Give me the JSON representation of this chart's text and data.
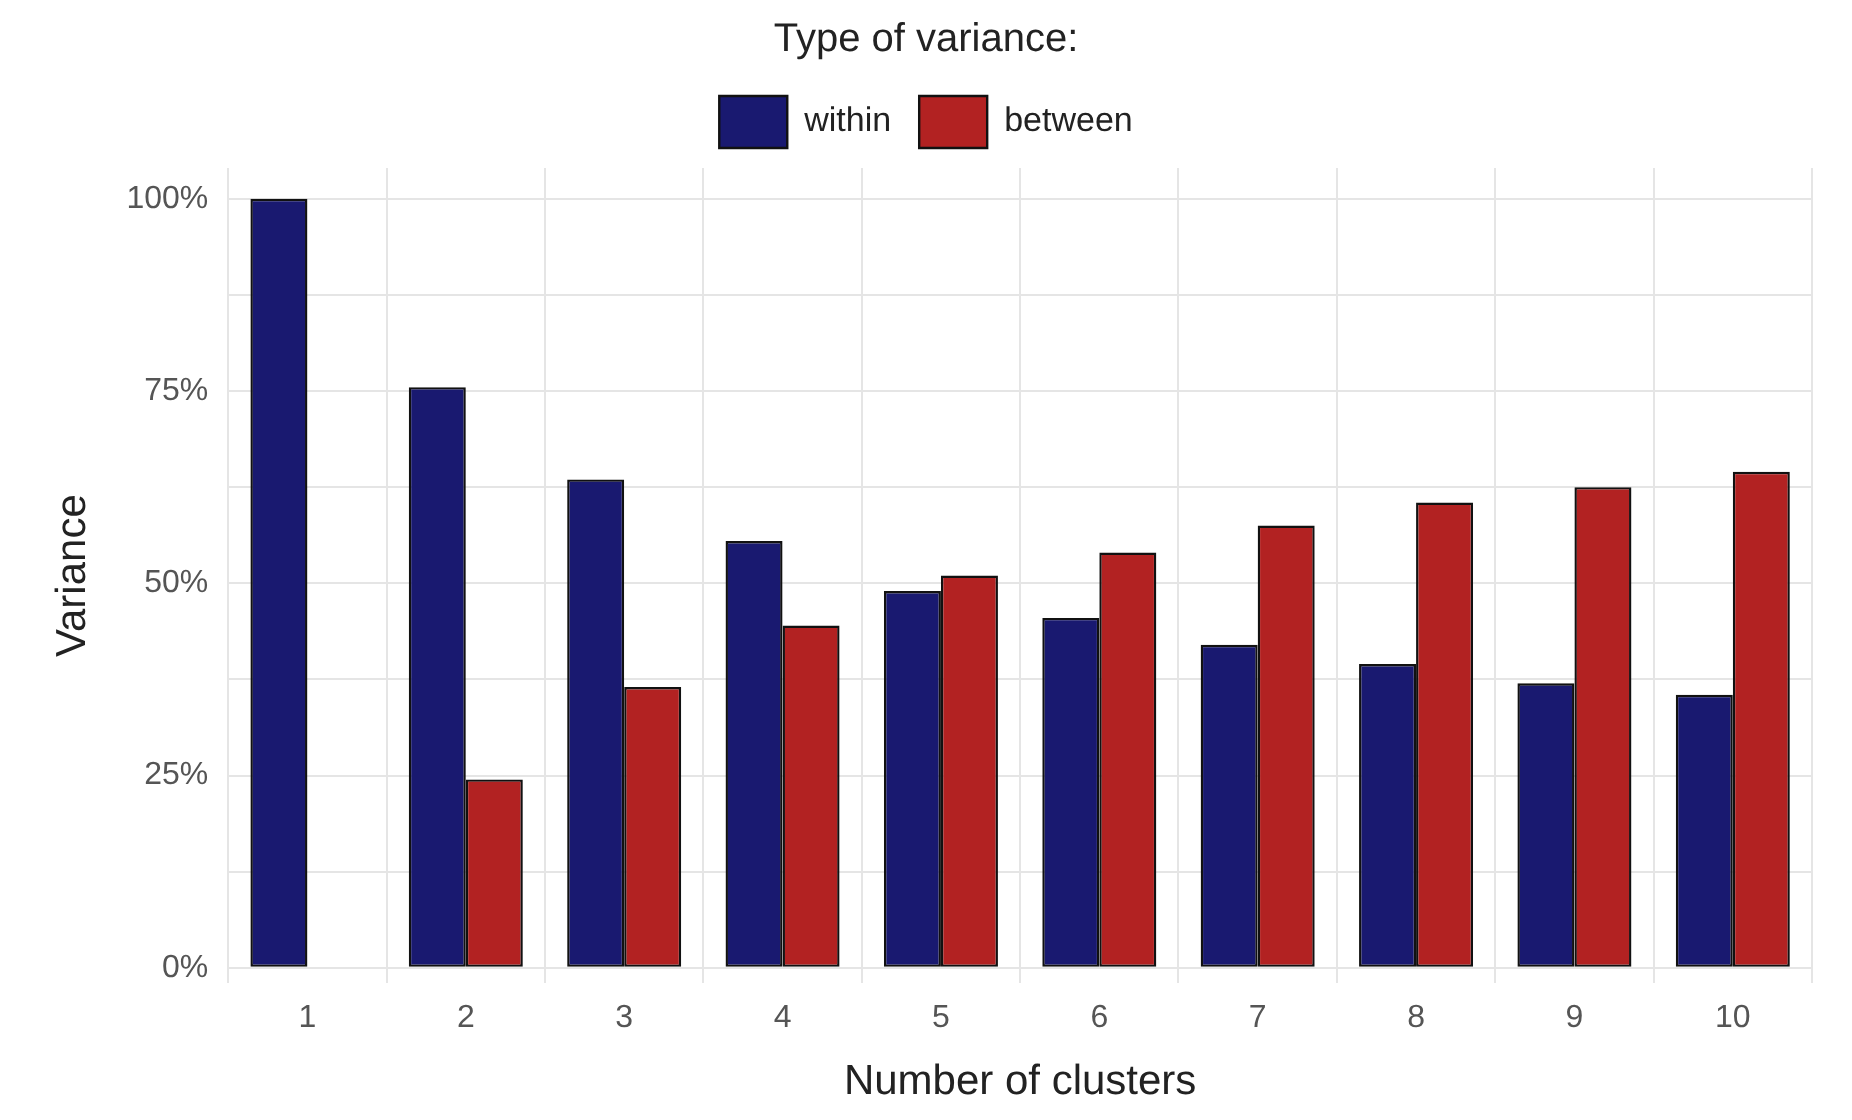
{
  "chart_data": {
    "type": "bar",
    "xlabel": "Number of clusters",
    "ylabel": "Variance",
    "legend_title": "Type of variance:",
    "categories": [
      "1",
      "2",
      "3",
      "4",
      "5",
      "6",
      "7",
      "8",
      "9",
      "10"
    ],
    "series": [
      {
        "name": "within",
        "color": "#191970",
        "values": [
          100,
          75.5,
          63.5,
          55.5,
          49,
          45.5,
          42,
          39.5,
          37,
          35.5
        ]
      },
      {
        "name": "between",
        "color": "#b22222",
        "values": [
          0,
          24.5,
          36.5,
          44.5,
          51,
          54,
          57.5,
          60.5,
          62.5,
          64.5
        ]
      }
    ],
    "ylim": [
      -2,
      104
    ],
    "yticks": [
      {
        "value": 0,
        "label": "0%"
      },
      {
        "value": 12.5,
        "label": null
      },
      {
        "value": 25,
        "label": "25%"
      },
      {
        "value": 37.5,
        "label": null
      },
      {
        "value": 50,
        "label": "50%"
      },
      {
        "value": 62.5,
        "label": null
      },
      {
        "value": 75,
        "label": "75%"
      },
      {
        "value": 87.5,
        "label": null
      },
      {
        "value": 100,
        "label": "100%"
      }
    ],
    "grid": true,
    "legend": "top"
  }
}
